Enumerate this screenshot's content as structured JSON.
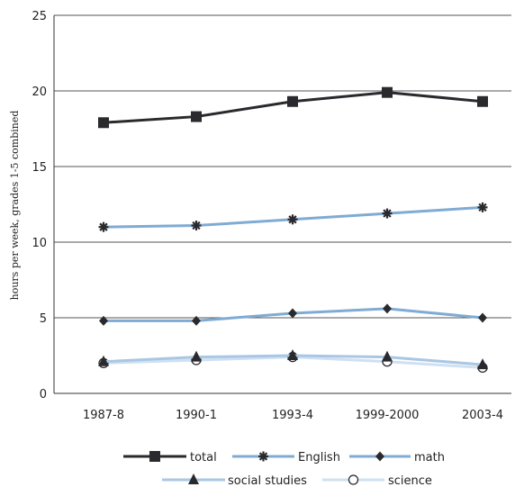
{
  "chart_data": {
    "type": "line",
    "title": "",
    "xlabel": "",
    "ylabel": "hours per week, grades 1-5 combined",
    "categories": [
      "1987-8",
      "1990-1",
      "1993-4",
      "1999-2000",
      "2003-4"
    ],
    "ylim": [
      0,
      25
    ],
    "yticks": [
      0,
      5,
      10,
      15,
      20,
      25
    ],
    "grid": "horizontal",
    "legend_position": "bottom",
    "series": [
      {
        "name": "total",
        "marker": "square",
        "color": "#2a2a2e",
        "values": [
          17.9,
          18.3,
          19.3,
          19.9,
          19.3
        ]
      },
      {
        "name": "English",
        "marker": "asterisk",
        "color": "#7fabd4",
        "values": [
          11.0,
          11.1,
          11.5,
          11.9,
          12.3
        ]
      },
      {
        "name": "math",
        "marker": "diamond",
        "color": "#7fabd4",
        "values": [
          4.8,
          4.8,
          5.3,
          5.6,
          5.0
        ]
      },
      {
        "name": "social studies",
        "marker": "triangle",
        "color": "#a9c7e4",
        "values": [
          2.1,
          2.4,
          2.5,
          2.4,
          1.9
        ]
      },
      {
        "name": "science",
        "marker": "circle",
        "color": "#cfe0f1",
        "values": [
          2.0,
          2.2,
          2.4,
          2.1,
          1.7
        ]
      }
    ]
  }
}
